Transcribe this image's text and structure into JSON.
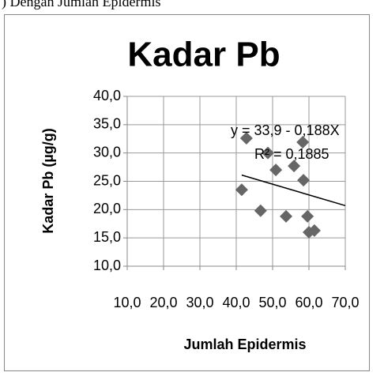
{
  "caption": ") Dengan Jumlah Epidermis",
  "chart_data": {
    "type": "scatter",
    "title": "Kadar Pb",
    "x_label": "Jumlah Epidermis",
    "y_label": "Kadar Pb (µg/g)",
    "series": [
      {
        "name": "Kadar Pb",
        "color": "#666666",
        "x": [
          42.8,
          41.5,
          46.7,
          48.7,
          50.9,
          53.7,
          55.9,
          58.3,
          58.5,
          59.6,
          60.0,
          61.5
        ],
        "values": [
          32.6,
          23.5,
          19.8,
          30.0,
          27.0,
          18.8,
          27.7,
          31.9,
          25.2,
          18.8,
          16.0,
          16.3
        ]
      }
    ],
    "trendline": {
      "color": "#000000",
      "x": [
        41.5,
        70
      ],
      "values": [
        26.1,
        20.7
      ]
    },
    "annotations": [
      "y = 33,9 - 0,188X",
      "R² = 0,1885"
    ],
    "xlim": [
      10,
      70
    ],
    "ylim": [
      10,
      40
    ],
    "xticks": [
      {
        "value": 10,
        "label": "10,0"
      },
      {
        "value": 20,
        "label": "20,0"
      },
      {
        "value": 30,
        "label": "30,0"
      },
      {
        "value": 40,
        "label": "40,0"
      },
      {
        "value": 50,
        "label": "50,0"
      },
      {
        "value": 60,
        "label": "60,0"
      },
      {
        "value": 70,
        "label": "70,0"
      }
    ],
    "yticks": [
      {
        "value": 10,
        "label": "10,0"
      },
      {
        "value": 15,
        "label": "15,0"
      },
      {
        "value": 20,
        "label": "20,0"
      },
      {
        "value": 25,
        "label": "25,0"
      },
      {
        "value": 30,
        "label": "30,0"
      },
      {
        "value": 35,
        "label": "35,0"
      },
      {
        "value": 40,
        "label": "40,0"
      }
    ],
    "grid": true
  }
}
